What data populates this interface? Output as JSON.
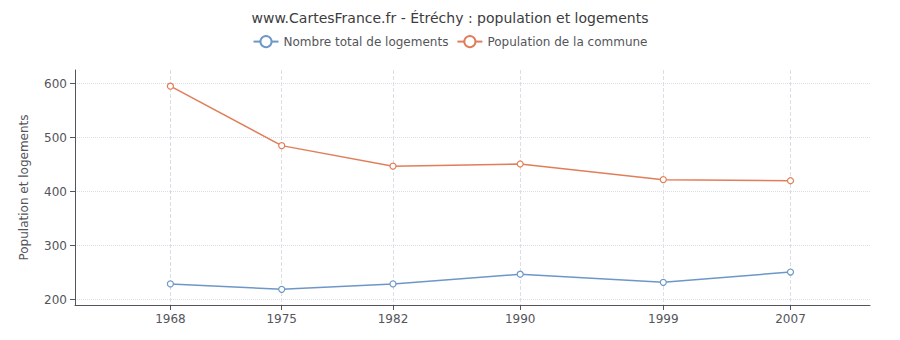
{
  "chart_data": {
    "type": "line",
    "title": "www.CartesFrance.fr - Étréchy : population et logements",
    "ylabel": "Population et logements",
    "x": [
      1968,
      1975,
      1982,
      1990,
      1999,
      2007
    ],
    "series": [
      {
        "name": "Nombre total de logements",
        "color": "#6e97c8",
        "values": [
          229,
          219,
          229,
          247,
          232,
          251
        ]
      },
      {
        "name": "Population de la commune",
        "color": "#e07e5a",
        "values": [
          595,
          485,
          447,
          451,
          422,
          420
        ]
      }
    ],
    "xlim": [
      1962,
      2012
    ],
    "xticks": [
      1968,
      1975,
      1982,
      1990,
      1999,
      2007
    ],
    "ylim": [
      190,
      625
    ],
    "yticks": [
      200,
      300,
      400,
      500,
      600
    ],
    "grid": true,
    "legend": "top",
    "marker": "circle"
  }
}
